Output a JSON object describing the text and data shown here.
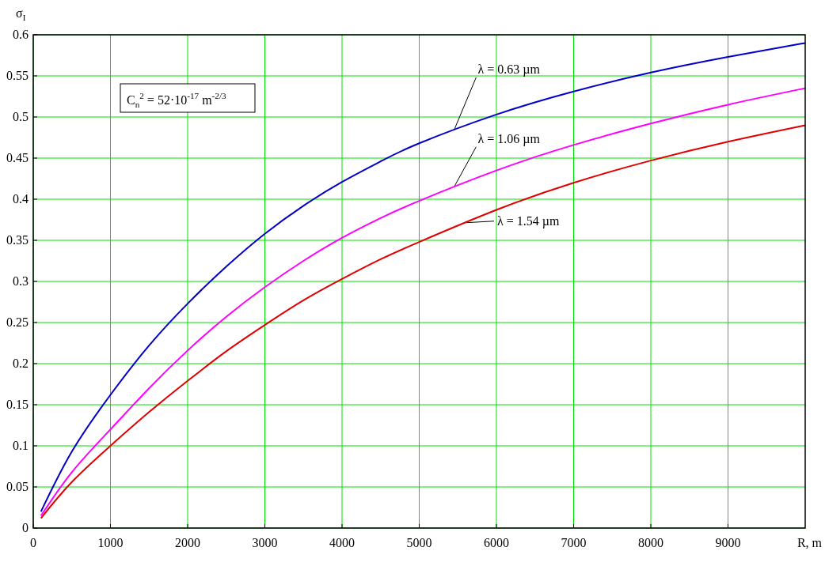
{
  "chart_data": {
    "type": "line",
    "ylabel": "σ$_{I}$",
    "xlabel": "R, m",
    "x": [
      100,
      500,
      1000,
      1500,
      2000,
      2500,
      3000,
      3500,
      4000,
      4500,
      5000,
      6000,
      7000,
      8000,
      9000,
      10000
    ],
    "series": [
      {
        "name": "λ = 0.63 µm",
        "color": "#0000c8",
        "values": [
          0.02,
          0.093,
          0.162,
          0.222,
          0.273,
          0.318,
          0.358,
          0.392,
          0.421,
          0.446,
          0.468,
          0.503,
          0.531,
          0.554,
          0.573,
          0.59
        ]
      },
      {
        "name": "λ = 1.06 µm",
        "color": "#ff00ff",
        "values": [
          0.015,
          0.068,
          0.12,
          0.17,
          0.216,
          0.257,
          0.293,
          0.325,
          0.353,
          0.377,
          0.398,
          0.435,
          0.466,
          0.492,
          0.515,
          0.535
        ]
      },
      {
        "name": "λ = 1.54 µm",
        "color": "#e00000",
        "values": [
          0.012,
          0.056,
          0.1,
          0.141,
          0.179,
          0.215,
          0.247,
          0.277,
          0.303,
          0.327,
          0.348,
          0.387,
          0.42,
          0.447,
          0.47,
          0.49
        ]
      }
    ],
    "annotations": [
      "C$_{n}$$^{2}$ = 52·10$^{-17}$ m$^{-2/3}$"
    ],
    "xlim": [
      0,
      10000
    ],
    "xticks": [
      0,
      1000,
      2000,
      3000,
      4000,
      5000,
      6000,
      7000,
      8000,
      9000
    ],
    "ylim": [
      0,
      0.6
    ],
    "yticks": [
      0,
      0.05,
      0.1,
      0.15,
      0.2,
      0.25,
      0.3,
      0.35,
      0.4,
      0.45,
      0.5,
      0.55,
      0.6
    ],
    "grid": true,
    "line_style": "solid",
    "marker": "none"
  }
}
